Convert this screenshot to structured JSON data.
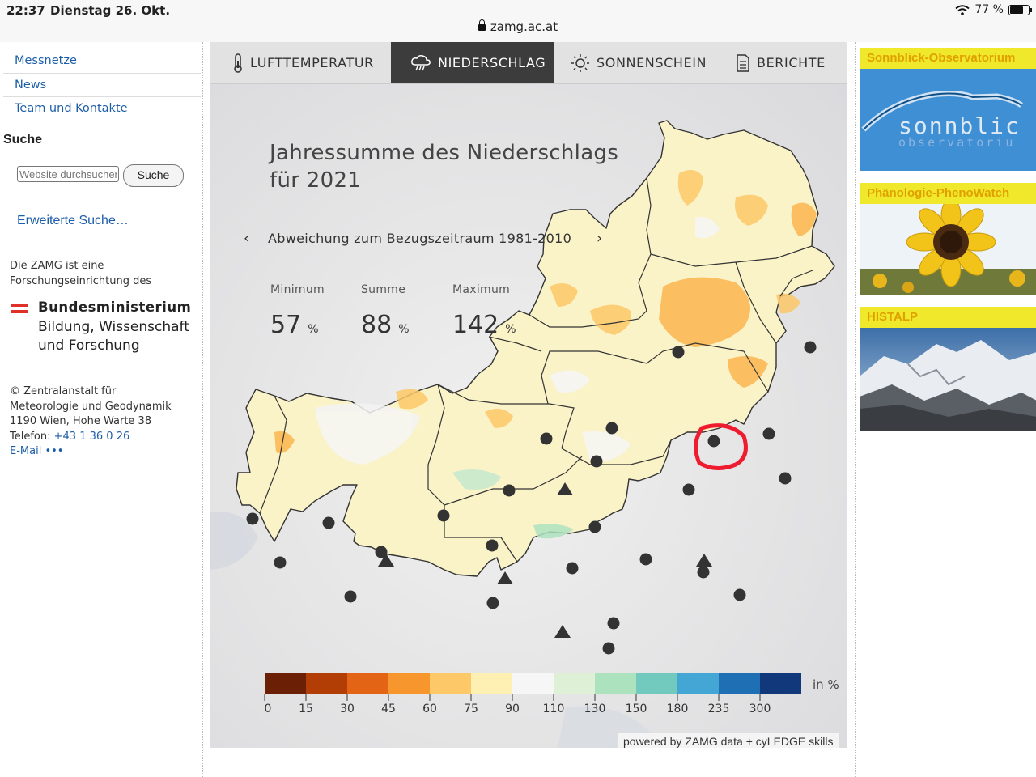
{
  "status_bar": {
    "time": "22:37",
    "date": "Dienstag 26. Okt.",
    "url": "zamg.ac.at",
    "battery": "77 %"
  },
  "sidebar": {
    "nav": [
      "Messnetze",
      "News",
      "Team und Kontakte"
    ],
    "search_title": "Suche",
    "search_placeholder": "Website durchsuchen",
    "search_button": "Suche",
    "advanced_search": "Erweiterte Suche…",
    "info_line1": "Die ZAMG ist eine",
    "info_line2": "Forschungseinrichtung des",
    "ministry": [
      "Bundesministerium",
      "Bildung, Wissenschaft",
      "und Forschung"
    ],
    "contact": {
      "line1": "© Zentralanstalt für",
      "line2": "Meteorologie und Geodynamik",
      "line3": "1190 Wien, Hohe Warte 38",
      "phone_label": "Telefon:",
      "phone": "+43 1 36 0 26",
      "email": "E-Mail",
      "email_more": "•••"
    }
  },
  "tabs": [
    {
      "label": "LUFTTEMPERATUR",
      "icon": "thermometer-icon"
    },
    {
      "label": "NIEDERSCHLAG",
      "icon": "rain-cloud-icon",
      "active": true
    },
    {
      "label": "SONNENSCHEIN",
      "icon": "sun-icon"
    },
    {
      "label": "BERICHTE",
      "icon": "document-icon"
    }
  ],
  "map": {
    "title_line1": "Jahressumme des Niederschlags",
    "title_line2": "für 2021",
    "subtitle": "Abweichung zum Bezugszeitraum 1981-2010",
    "prev": "‹",
    "next": "›",
    "stats": [
      {
        "label": "Minimum",
        "value": "57",
        "unit": "%"
      },
      {
        "label": "Summe",
        "value": "88",
        "unit": "%"
      },
      {
        "label": "Maximum",
        "value": "142",
        "unit": "%"
      }
    ],
    "legend_unit": "in %",
    "legend_ticks": [
      "0",
      "15",
      "30",
      "45",
      "60",
      "75",
      "90",
      "110",
      "130",
      "150",
      "180",
      "235",
      "300"
    ],
    "legend_colors": [
      "#6b2006",
      "#b33e05",
      "#e26414",
      "#f7962c",
      "#fdc868",
      "#fdf0b2",
      "#f6f6f6",
      "#def0d6",
      "#ade2bf",
      "#72c9bd",
      "#43a6d4",
      "#1f6fb4",
      "#10387a"
    ],
    "credit": "powered by ZAMG data + cyLEDGE skills",
    "highlight_color": "#ee1c2e"
  },
  "right_sidebar": [
    {
      "title": "Sonnblick-Observatorium",
      "logo_text_1": "sonnblick",
      "logo_text_2": "observatorium"
    },
    {
      "title": "Phänologie-PhenoWatch"
    },
    {
      "title": "HISTALP"
    }
  ]
}
